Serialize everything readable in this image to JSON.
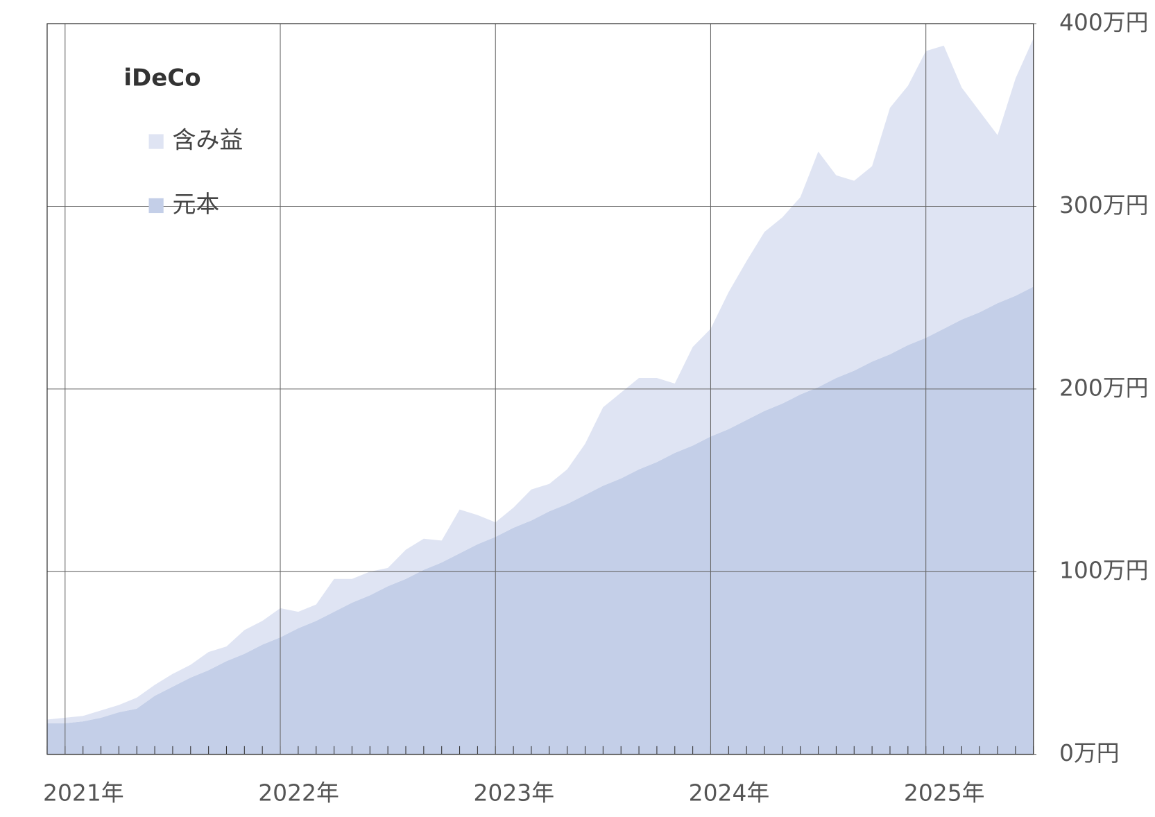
{
  "chart_data": {
    "type": "stacked_area",
    "title": "iDeCo",
    "categories": [
      null,
      "2021年",
      null,
      null,
      null,
      null,
      null,
      null,
      null,
      null,
      null,
      null,
      null,
      "2022年",
      null,
      null,
      null,
      null,
      null,
      null,
      null,
      null,
      null,
      null,
      null,
      "2023年",
      null,
      null,
      null,
      null,
      null,
      null,
      null,
      null,
      null,
      null,
      null,
      "2024年",
      null,
      null,
      null,
      null,
      null,
      null,
      null,
      null,
      null,
      null,
      null,
      "2025年",
      null,
      null,
      null,
      null,
      null,
      null
    ],
    "series": [
      {
        "name": "元本",
        "color": "#c4cfe8",
        "values": [
          17,
          17,
          18,
          20,
          23,
          25,
          32,
          37,
          42,
          46,
          51,
          55,
          60,
          64,
          69,
          73,
          78,
          83,
          87,
          92,
          96,
          101,
          105,
          110,
          115,
          119,
          124,
          128,
          133,
          137,
          142,
          147,
          151,
          156,
          160,
          165,
          169,
          174,
          178,
          183,
          188,
          192,
          197,
          201,
          206,
          210,
          215,
          219,
          224,
          228,
          233,
          238,
          242,
          247,
          251,
          256
        ]
      },
      {
        "name": "含み益",
        "color": "#dfe4f3",
        "values": [
          2,
          3,
          3,
          4,
          4,
          6,
          6,
          7,
          7,
          10,
          8,
          13,
          13,
          16,
          9,
          9,
          18,
          13,
          13,
          10,
          16,
          17,
          12,
          24,
          16,
          8,
          11,
          17,
          15,
          19,
          28,
          43,
          47,
          50,
          46,
          38,
          54,
          59,
          75,
          87,
          98,
          102,
          108,
          129,
          111,
          104,
          107,
          135,
          142,
          157,
          155,
          127,
          110,
          92,
          119,
          136
        ]
      }
    ],
    "ylim": [
      0,
      400
    ],
    "yticks": [
      {
        "value": 0,
        "label": "0万円"
      },
      {
        "value": 100,
        "label": "100万円"
      },
      {
        "value": 200,
        "label": "200万円"
      },
      {
        "value": 300,
        "label": "300万円"
      },
      {
        "value": 400,
        "label": "400万円"
      }
    ],
    "grid": true,
    "legend": "upper left"
  }
}
